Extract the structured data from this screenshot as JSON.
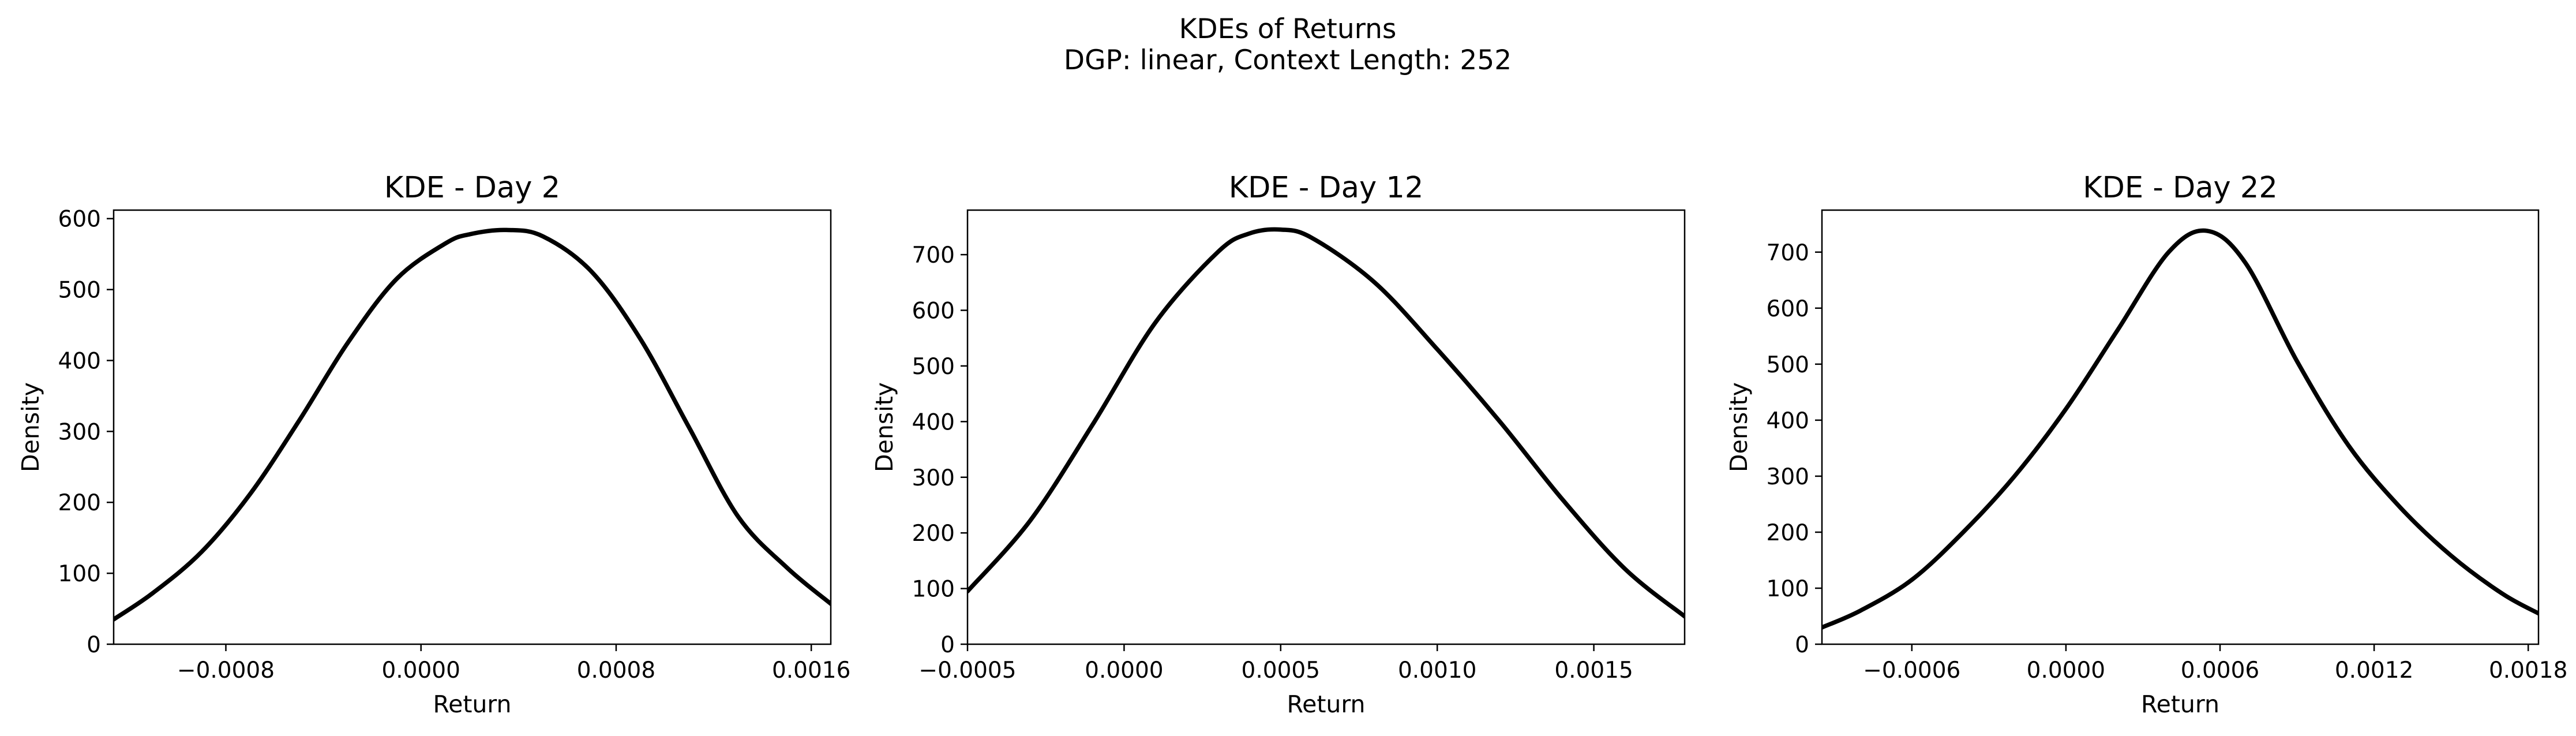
{
  "figure": {
    "title_line1": "KDEs of Returns",
    "title_line2": "DGP: linear, Context Length: 252"
  },
  "chart_data": [
    {
      "type": "line",
      "title": "KDE - Day 2",
      "xlabel": "Return",
      "ylabel": "Density",
      "xlim": [
        -0.00126,
        0.00168
      ],
      "ylim": [
        0,
        612
      ],
      "xticks": [
        -0.0008,
        0.0,
        0.0008,
        0.0016
      ],
      "xtick_labels": [
        "−0.0008",
        "0.0000",
        "0.0008",
        "0.0016"
      ],
      "yticks": [
        0,
        100,
        200,
        300,
        400,
        500,
        600
      ],
      "ytick_labels": [
        "0",
        "100",
        "200",
        "300",
        "400",
        "500",
        "600"
      ],
      "grid": false,
      "series": [
        {
          "color": "#000000",
          "x": [
            -0.00126,
            -0.0011,
            -0.0009,
            -0.0007,
            -0.0005,
            -0.0003,
            -0.0001,
            0.0001,
            0.0002,
            0.00035,
            0.0005,
            0.0007,
            0.0009,
            0.0011,
            0.0013,
            0.0015,
            0.00168
          ],
          "y": [
            35,
            72,
            130,
            212,
            315,
            425,
            515,
            565,
            578,
            584,
            575,
            525,
            430,
            305,
            180,
            108,
            57
          ]
        }
      ]
    },
    {
      "type": "line",
      "title": "KDE - Day 12",
      "xlabel": "Return",
      "ylabel": "Density",
      "xlim": [
        -0.0005,
        0.00179
      ],
      "ylim": [
        0,
        780
      ],
      "xticks": [
        -0.0005,
        0.0,
        0.0005,
        0.001,
        0.0015
      ],
      "xtick_labels": [
        "−0.0005",
        "0.0000",
        "0.0005",
        "0.0010",
        "0.0015"
      ],
      "yticks": [
        0,
        100,
        200,
        300,
        400,
        500,
        600,
        700
      ],
      "ytick_labels": [
        "0",
        "100",
        "200",
        "300",
        "400",
        "500",
        "600",
        "700"
      ],
      "grid": false,
      "series": [
        {
          "color": "#000000",
          "x": [
            -0.0005,
            -0.0003,
            -0.0001,
            0.0001,
            0.0003,
            0.0004,
            0.0005,
            0.0006,
            0.0008,
            0.001,
            0.0012,
            0.0014,
            0.0016,
            0.00179
          ],
          "y": [
            95,
            222,
            395,
            578,
            705,
            738,
            745,
            730,
            650,
            530,
            400,
            260,
            135,
            50
          ]
        }
      ]
    },
    {
      "type": "line",
      "title": "KDE - Day 22",
      "xlabel": "Return",
      "ylabel": "Density",
      "xlim": [
        -0.00095,
        0.00184
      ],
      "ylim": [
        0,
        775
      ],
      "xticks": [
        -0.0006,
        0.0,
        0.0006,
        0.0012,
        0.0018
      ],
      "xtick_labels": [
        "−0.0006",
        "0.0000",
        "0.0006",
        "0.0012",
        "0.0018"
      ],
      "yticks": [
        0,
        100,
        200,
        300,
        400,
        500,
        600,
        700
      ],
      "ytick_labels": [
        "0",
        "100",
        "200",
        "300",
        "400",
        "500",
        "600",
        "700"
      ],
      "grid": false,
      "series": [
        {
          "color": "#000000",
          "x": [
            -0.00095,
            -0.0008,
            -0.0006,
            -0.0004,
            -0.0002,
            0.0,
            0.0002,
            0.0004,
            0.00055,
            0.0007,
            0.0009,
            0.0011,
            0.0013,
            0.0015,
            0.0017,
            0.00184
          ],
          "y": [
            30,
            60,
            115,
            200,
            300,
            420,
            560,
            700,
            738,
            680,
            505,
            355,
            245,
            158,
            90,
            55
          ]
        }
      ]
    }
  ]
}
